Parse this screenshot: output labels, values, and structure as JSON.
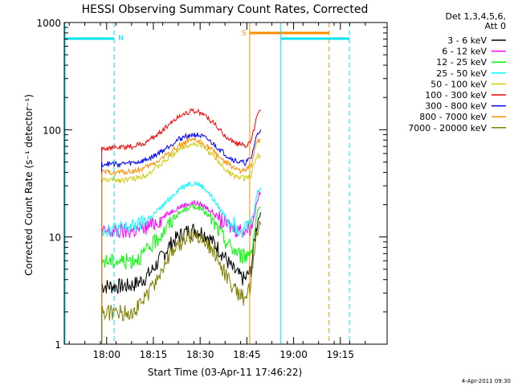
{
  "chart_data": {
    "type": "line",
    "title": "HESSI Observing Summary Count Rates, Corrected",
    "xlabel": "Start Time (03-Apr-11 17:46:22)",
    "ylabel": "Corrected Count Rate (s⁻¹ detector⁻¹)",
    "y_scale": "log",
    "ylim": [
      1,
      1000
    ],
    "xlim_minutes": [
      0,
      103.6
    ],
    "x_ticks": [
      {
        "label": "18:00",
        "value": 13.6
      },
      {
        "label": "18:15",
        "value": 28.6
      },
      {
        "label": "18:30",
        "value": 43.6
      },
      {
        "label": "18:45",
        "value": 58.6
      },
      {
        "label": "19:00",
        "value": 73.6
      },
      {
        "label": "19:15",
        "value": 88.6
      }
    ],
    "y_ticks": [
      {
        "label": "1",
        "value": 1
      },
      {
        "label": "10",
        "value": 10
      },
      {
        "label": "100",
        "value": 100
      },
      {
        "label": "1000",
        "value": 1000
      }
    ],
    "legend_header": [
      "Det 1,3,4,5,6,",
      "Att 0"
    ],
    "legend_placement": "right",
    "series": [
      {
        "name": "3 - 6 keV",
        "color": "#000000",
        "x": [
          12,
          14,
          16,
          18,
          20,
          22,
          24,
          26,
          28,
          30,
          32,
          34,
          36,
          38,
          40,
          42,
          44,
          46,
          48,
          50,
          52,
          54,
          56,
          58,
          60,
          61,
          62,
          63
        ],
        "y": [
          3.5,
          3.5,
          3.5,
          3.5,
          3.5,
          3.6,
          3.8,
          4.2,
          4.8,
          5.8,
          7.0,
          8.5,
          9.8,
          10.8,
          11.5,
          11.8,
          11.2,
          10.2,
          8.8,
          7.5,
          6.2,
          5.0,
          4.4,
          4.0,
          5.0,
          9,
          14,
          17
        ]
      },
      {
        "name": "6 - 12 keV",
        "color": "#ff00ff",
        "x": [
          12,
          14,
          16,
          18,
          20,
          22,
          24,
          26,
          28,
          30,
          32,
          34,
          36,
          38,
          40,
          42,
          44,
          46,
          48,
          50,
          52,
          54,
          56,
          58,
          60,
          61,
          62,
          63
        ],
        "y": [
          11,
          11.2,
          11.2,
          11.3,
          11.3,
          11.5,
          11.8,
          12.3,
          13,
          14.2,
          15.5,
          17,
          18.5,
          19.5,
          20.5,
          20.8,
          20.0,
          18.5,
          16.5,
          14.5,
          13.2,
          12.3,
          11.8,
          11.6,
          12.5,
          16,
          23,
          26
        ]
      },
      {
        "name": "12 - 25 keV",
        "color": "#00ff00",
        "x": [
          12,
          14,
          16,
          18,
          20,
          22,
          24,
          26,
          28,
          30,
          32,
          34,
          36,
          38,
          40,
          42,
          44,
          46,
          48,
          50,
          52,
          54,
          56,
          58,
          60,
          61,
          62,
          63
        ],
        "y": [
          6,
          6,
          6,
          6,
          6,
          6.2,
          6.5,
          7.2,
          8.2,
          9.8,
          11.5,
          13.5,
          15.8,
          17.5,
          18.8,
          19.2,
          18.2,
          16.2,
          13.5,
          11,
          9,
          7.8,
          7,
          6.6,
          7.5,
          11,
          17,
          19
        ]
      },
      {
        "name": "25 - 50 keV",
        "color": "#00ffff",
        "x": [
          12,
          14,
          16,
          18,
          20,
          22,
          24,
          26,
          28,
          30,
          32,
          34,
          36,
          38,
          40,
          42,
          44,
          46,
          48,
          50,
          52,
          54,
          56,
          58,
          60,
          61,
          62,
          63
        ],
        "y": [
          12,
          12,
          12,
          12,
          12.2,
          12.5,
          13,
          14,
          15.5,
          17.5,
          20,
          23,
          26.5,
          29.5,
          31.5,
          31.8,
          30,
          26.5,
          22,
          18,
          15.2,
          13.5,
          12.5,
          12.2,
          14,
          18,
          26,
          29
        ]
      },
      {
        "name": "50 - 100 keV",
        "color": "#cccc00",
        "x": [
          12,
          14,
          16,
          18,
          20,
          22,
          24,
          26,
          28,
          30,
          32,
          34,
          36,
          38,
          40,
          42,
          44,
          46,
          48,
          50,
          52,
          54,
          56,
          58,
          60,
          61,
          62,
          63
        ],
        "y": [
          34,
          34,
          34,
          34,
          34.2,
          35,
          36,
          38,
          41,
          45,
          50,
          56,
          63,
          69,
          73,
          74,
          71,
          64,
          56,
          48,
          42,
          38,
          36,
          35,
          38,
          48,
          56,
          58
        ]
      },
      {
        "name": "100 - 300 keV",
        "color": "#ff0000",
        "x": [
          12,
          14,
          16,
          18,
          20,
          22,
          24,
          26,
          28,
          30,
          32,
          34,
          36,
          38,
          40,
          42,
          44,
          46,
          48,
          50,
          52,
          54,
          56,
          58,
          60,
          61,
          62,
          63
        ],
        "y": [
          68,
          68,
          68,
          68,
          69,
          70,
          72,
          76,
          82,
          91,
          102,
          115,
          128,
          140,
          148,
          150,
          143,
          130,
          114,
          98,
          86,
          78,
          73,
          71,
          78,
          105,
          138,
          150
        ]
      },
      {
        "name": "300 - 800 keV",
        "color": "#0000ff",
        "x": [
          12,
          14,
          16,
          18,
          20,
          22,
          24,
          26,
          28,
          30,
          32,
          34,
          36,
          38,
          40,
          42,
          44,
          46,
          48,
          50,
          52,
          54,
          56,
          58,
          60,
          61,
          62,
          63
        ],
        "y": [
          48,
          48,
          48,
          48,
          48.5,
          49,
          50,
          52,
          55,
          60,
          65,
          72,
          79,
          85,
          89,
          90,
          87,
          81,
          73,
          65,
          58,
          53,
          50,
          49,
          54,
          72,
          92,
          100
        ]
      },
      {
        "name": "800 - 7000 keV",
        "color": "#ff8c00",
        "x": [
          12,
          14,
          16,
          18,
          20,
          22,
          24,
          26,
          28,
          30,
          32,
          34,
          36,
          38,
          40,
          42,
          44,
          46,
          48,
          50,
          52,
          54,
          56,
          58,
          60,
          61,
          62,
          63
        ],
        "y": [
          40,
          40,
          40,
          40,
          40.5,
          41,
          42,
          44,
          47,
          51,
          56,
          62,
          68,
          74,
          78,
          79,
          76,
          70,
          62,
          55,
          49,
          45,
          42,
          41,
          46,
          62,
          78,
          82
        ]
      },
      {
        "name": "7000 - 20000 keV",
        "color": "#808000",
        "x": [
          12,
          14,
          16,
          18,
          20,
          22,
          24,
          26,
          28,
          30,
          32,
          34,
          36,
          38,
          40,
          42,
          44,
          46,
          48,
          50,
          52,
          54,
          56,
          58,
          60,
          61,
          62,
          63
        ],
        "y": [
          2,
          2,
          2,
          2,
          2,
          2.1,
          2.3,
          2.7,
          3.3,
          4.2,
          5.3,
          6.6,
          8,
          9.3,
          10.2,
          10.5,
          9.9,
          8.7,
          7.1,
          5.6,
          4.4,
          3.5,
          3,
          2.7,
          3.5,
          7,
          11,
          13
        ]
      }
    ],
    "annotations": [
      {
        "label": "N",
        "color": "#00e5ee"
      },
      {
        "label": "S",
        "color": "#ff8c00"
      }
    ],
    "date_stamp": "4-Apr-2011 09:30"
  }
}
